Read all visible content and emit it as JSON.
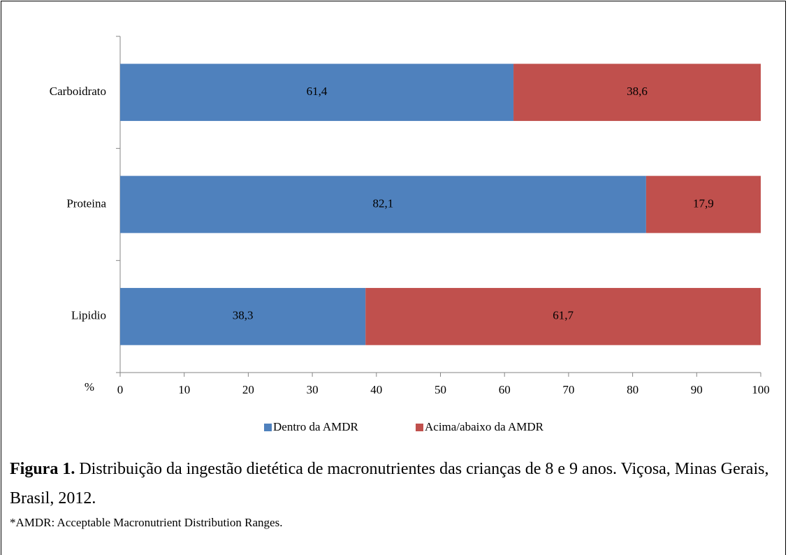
{
  "chart_data": {
    "type": "stacked_barh",
    "categories": [
      "Carboidrato",
      "Proteina",
      "Lipidio"
    ],
    "series": [
      {
        "name": "Dentro da AMDR",
        "color": "#4f81bd",
        "values": [
          61.4,
          82.1,
          38.3
        ],
        "value_labels": [
          "61,4",
          "82,1",
          "38,3"
        ]
      },
      {
        "name": "Acima/abaixo da AMDR",
        "color": "#c0504d",
        "values": [
          38.6,
          17.9,
          61.7
        ],
        "value_labels": [
          "38,6",
          "17,9",
          "61,7"
        ]
      }
    ],
    "xlabel": "%",
    "xlim": [
      0,
      100
    ],
    "xticks": [
      0,
      10,
      20,
      30,
      40,
      50,
      60,
      70,
      80,
      90,
      100
    ],
    "legend": "bottom"
  },
  "caption": {
    "label": "Figura 1.",
    "text": "Distribuição da ingestão dietética de macronutrientes das crianças de 8 e 9 anos. Viçosa, Minas Gerais, Brasil, 2012."
  },
  "footnote": "*AMDR: Acceptable Macronutrient Distribution Ranges."
}
